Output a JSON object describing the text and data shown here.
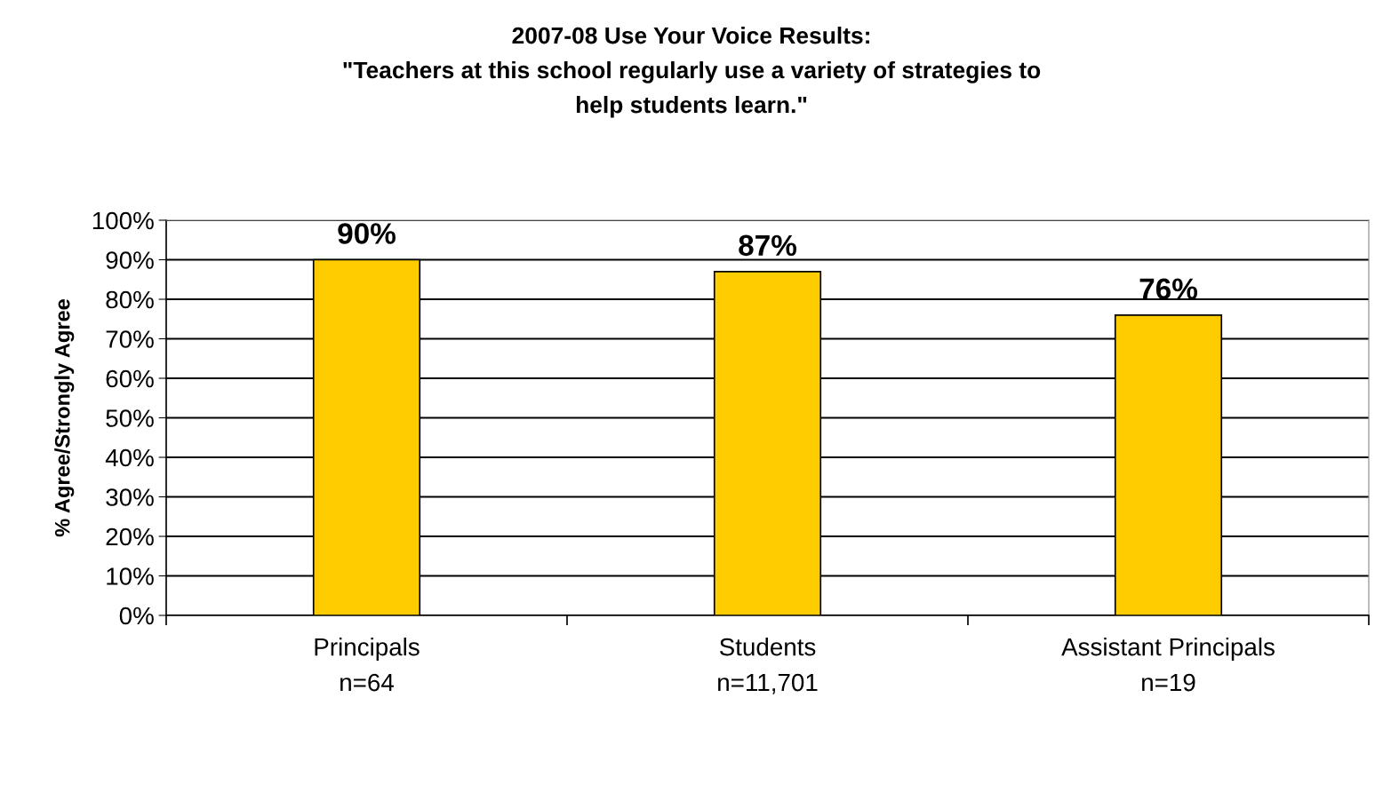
{
  "chart_data": {
    "type": "bar",
    "title": "2007-08 Use Your Voice Results:\n\"Teachers at this school regularly use a variety of strategies to\nhelp students learn.\"",
    "ylabel": "% Agree/Strongly Agree",
    "categories": [
      "Principals\nn=64",
      "Students\nn=11,701",
      "Assistant Principals\nn=19"
    ],
    "values": [
      90,
      87,
      76
    ],
    "value_labels": [
      "90%",
      "87%",
      "76%"
    ],
    "color": "#ffcc00",
    "ylim": [
      0,
      100
    ],
    "yticks": [
      {
        "value": 0,
        "label": "0%"
      },
      {
        "value": 10,
        "label": "10%"
      },
      {
        "value": 20,
        "label": "20%"
      },
      {
        "value": 30,
        "label": "30%"
      },
      {
        "value": 40,
        "label": "40%"
      },
      {
        "value": 50,
        "label": "50%"
      },
      {
        "value": 60,
        "label": "60%"
      },
      {
        "value": 70,
        "label": "70%"
      },
      {
        "value": 80,
        "label": "80%"
      },
      {
        "value": 90,
        "label": "90%"
      },
      {
        "value": 100,
        "label": "100%"
      }
    ],
    "grid": "y",
    "legend": false
  }
}
